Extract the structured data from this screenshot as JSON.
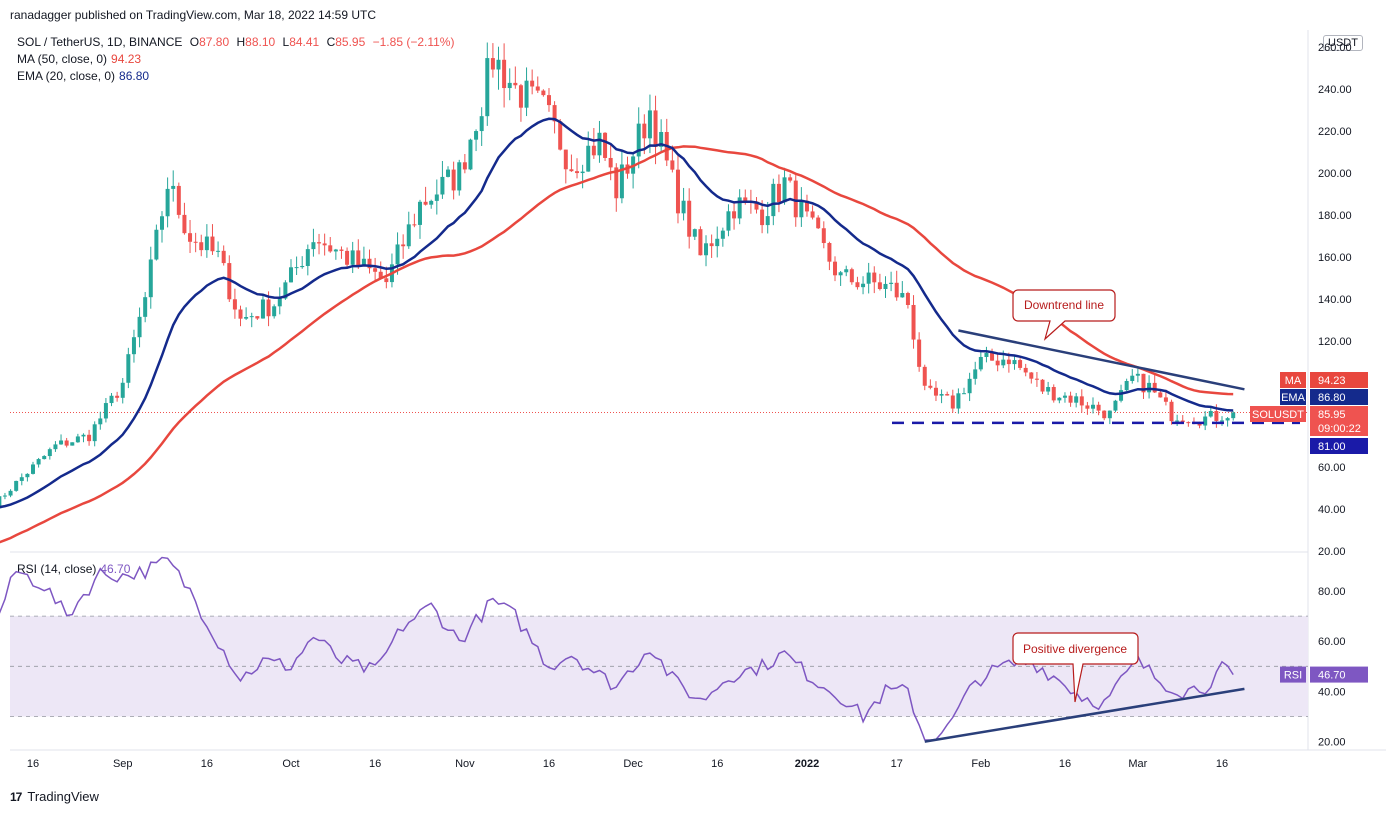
{
  "header": {
    "published": "ranadagger published on TradingView.com, Mar 18, 2022 14:59 UTC",
    "symbol_line": "SOL / TetherUS, 1D, BINANCE",
    "o_label": "O",
    "o_value": "87.80",
    "h_label": "H",
    "h_value": "88.10",
    "l_label": "L",
    "l_value": "84.41",
    "c_label": "C",
    "c_value": "85.95",
    "change": "−1.85 (−2.11%)",
    "ma_label": "MA (50, close, 0)",
    "ma_value": "94.23",
    "ema_label": "EMA (20, close, 0)",
    "ema_value": "86.80",
    "rsi_label": "RSI (14, close)",
    "rsi_value": "46.70"
  },
  "currency_button": "USDT",
  "footer": {
    "brand": "TradingView",
    "logo": "17"
  },
  "colors": {
    "up": "#26a69a",
    "down": "#ef5350",
    "ma": "#e8473e",
    "ema": "#142a8c",
    "rsi": "#7e57c2",
    "rsi_band": "#ede7f6",
    "annotation": "#b71c1c",
    "trendline": "#2a3f7a"
  },
  "chart_data": [
    {
      "type": "candlestick",
      "title": "SOL / TetherUS, 1D, BINANCE",
      "ylabel": "USDT",
      "ylim": [
        20,
        262
      ],
      "y_ticks": [
        "260.00",
        "240.00",
        "220.00",
        "200.00",
        "180.00",
        "160.00",
        "140.00",
        "120.00",
        "100.00",
        "80.00",
        "60.00",
        "40.00",
        "20.00"
      ],
      "x_ticks": [
        "16",
        "Sep",
        "16",
        "Oct",
        "16",
        "Nov",
        "16",
        "Dec",
        "16",
        "2022",
        "17",
        "Feb",
        "16",
        "Mar",
        "16"
      ],
      "x_tick_dates": [
        "2021-08-16",
        "2021-09-01",
        "2021-09-16",
        "2021-10-01",
        "2021-10-16",
        "2021-11-01",
        "2021-11-16",
        "2021-12-01",
        "2021-12-16",
        "2022-01-01",
        "2022-01-17",
        "2022-02-01",
        "2022-02-16",
        "2022-03-01",
        "2022-03-16"
      ],
      "close_anchors": [
        [
          "2021-08-09",
          42
        ],
        [
          "2021-08-14",
          55
        ],
        [
          "2021-08-20",
          70
        ],
        [
          "2021-08-26",
          75
        ],
        [
          "2021-09-01",
          100
        ],
        [
          "2021-09-05",
          140
        ],
        [
          "2021-09-09",
          195
        ],
        [
          "2021-09-13",
          170
        ],
        [
          "2021-09-18",
          160
        ],
        [
          "2021-09-22",
          130
        ],
        [
          "2021-09-28",
          138
        ],
        [
          "2021-10-01",
          150
        ],
        [
          "2021-10-05",
          170
        ],
        [
          "2021-10-12",
          158
        ],
        [
          "2021-10-18",
          148
        ],
        [
          "2021-10-24",
          185
        ],
        [
          "2021-10-31",
          200
        ],
        [
          "2021-11-04",
          235
        ],
        [
          "2021-11-06",
          255
        ],
        [
          "2021-11-10",
          240
        ],
        [
          "2021-11-15",
          230
        ],
        [
          "2021-11-20",
          205
        ],
        [
          "2021-11-25",
          215
        ],
        [
          "2021-11-28",
          192
        ],
        [
          "2021-12-01",
          210
        ],
        [
          "2021-12-04",
          230
        ],
        [
          "2021-12-08",
          195
        ],
        [
          "2021-12-13",
          160
        ],
        [
          "2021-12-19",
          185
        ],
        [
          "2021-12-24",
          182
        ],
        [
          "2021-12-28",
          195
        ],
        [
          "2022-01-02",
          172
        ],
        [
          "2022-01-07",
          150
        ],
        [
          "2022-01-12",
          148
        ],
        [
          "2022-01-16",
          145
        ],
        [
          "2022-01-19",
          138
        ],
        [
          "2022-01-22",
          95
        ],
        [
          "2022-01-27",
          90
        ],
        [
          "2022-02-01",
          110
        ],
        [
          "2022-02-06",
          112
        ],
        [
          "2022-02-12",
          97
        ],
        [
          "2022-02-18",
          92
        ],
        [
          "2022-02-24",
          85
        ],
        [
          "2022-02-28",
          102
        ],
        [
          "2022-03-03",
          98
        ],
        [
          "2022-03-07",
          85
        ],
        [
          "2022-03-12",
          83
        ],
        [
          "2022-03-15",
          84
        ],
        [
          "2022-03-18",
          85.95
        ]
      ],
      "last": {
        "open": 87.8,
        "high": 88.1,
        "low": 84.41,
        "close": 85.95
      },
      "price_labels": [
        {
          "name": "MA",
          "value": "94.23"
        },
        {
          "name": "EMA",
          "value": "86.80"
        },
        {
          "name": "SOLUSDT",
          "value": "85.95",
          "countdown": "09:00:22"
        },
        {
          "name": "",
          "value": "81.00"
        }
      ],
      "support_level": 81.0,
      "downtrend_line": {
        "from": [
          "2022-01-28",
          125
        ],
        "to": [
          "2022-03-20",
          97
        ]
      },
      "annotation": "Downtrend line"
    },
    {
      "type": "line",
      "title": "RSI (14, close)",
      "ylim": [
        15,
        97
      ],
      "y_ticks": [
        "80.00",
        "60.00",
        "40.00",
        "20.00"
      ],
      "levels": [
        70,
        50,
        30
      ],
      "rsi_anchors": [
        [
          "2021-08-09",
          66
        ],
        [
          "2021-08-13",
          88
        ],
        [
          "2021-08-18",
          82
        ],
        [
          "2021-08-22",
          70
        ],
        [
          "2021-08-28",
          87
        ],
        [
          "2021-09-01",
          86
        ],
        [
          "2021-09-05",
          88
        ],
        [
          "2021-09-09",
          92
        ],
        [
          "2021-09-13",
          80
        ],
        [
          "2021-09-18",
          60
        ],
        [
          "2021-09-22",
          45
        ],
        [
          "2021-09-26",
          52
        ],
        [
          "2021-10-01",
          50
        ],
        [
          "2021-10-05",
          62
        ],
        [
          "2021-10-10",
          52
        ],
        [
          "2021-10-16",
          48
        ],
        [
          "2021-10-21",
          66
        ],
        [
          "2021-10-26",
          74
        ],
        [
          "2021-10-31",
          60
        ],
        [
          "2021-11-06",
          76
        ],
        [
          "2021-11-10",
          70
        ],
        [
          "2021-11-16",
          50
        ],
        [
          "2021-11-20",
          55
        ],
        [
          "2021-11-24",
          48
        ],
        [
          "2021-11-28",
          42
        ],
        [
          "2021-12-01",
          50
        ],
        [
          "2021-12-04",
          58
        ],
        [
          "2021-12-08",
          45
        ],
        [
          "2021-12-13",
          36
        ],
        [
          "2021-12-18",
          46
        ],
        [
          "2021-12-24",
          50
        ],
        [
          "2021-12-28",
          55
        ],
        [
          "2022-01-02",
          45
        ],
        [
          "2022-01-07",
          38
        ],
        [
          "2022-01-11",
          30
        ],
        [
          "2022-01-15",
          40
        ],
        [
          "2022-01-19",
          40
        ],
        [
          "2022-01-22",
          21
        ],
        [
          "2022-01-26",
          25
        ],
        [
          "2022-01-31",
          44
        ],
        [
          "2022-02-05",
          50
        ],
        [
          "2022-02-10",
          52
        ],
        [
          "2022-02-14",
          46
        ],
        [
          "2022-02-19",
          38
        ],
        [
          "2022-02-23",
          35
        ],
        [
          "2022-02-27",
          47
        ],
        [
          "2022-03-01",
          52
        ],
        [
          "2022-03-05",
          44
        ],
        [
          "2022-03-09",
          40
        ],
        [
          "2022-03-13",
          42
        ],
        [
          "2022-03-16",
          49
        ],
        [
          "2022-03-18",
          46.7
        ]
      ],
      "trendline": {
        "from": [
          "2022-01-22",
          20
        ],
        "to": [
          "2022-03-20",
          41
        ]
      },
      "annotation": "Positive divergence",
      "series_label": "RSI",
      "last_value": "46.70"
    }
  ]
}
